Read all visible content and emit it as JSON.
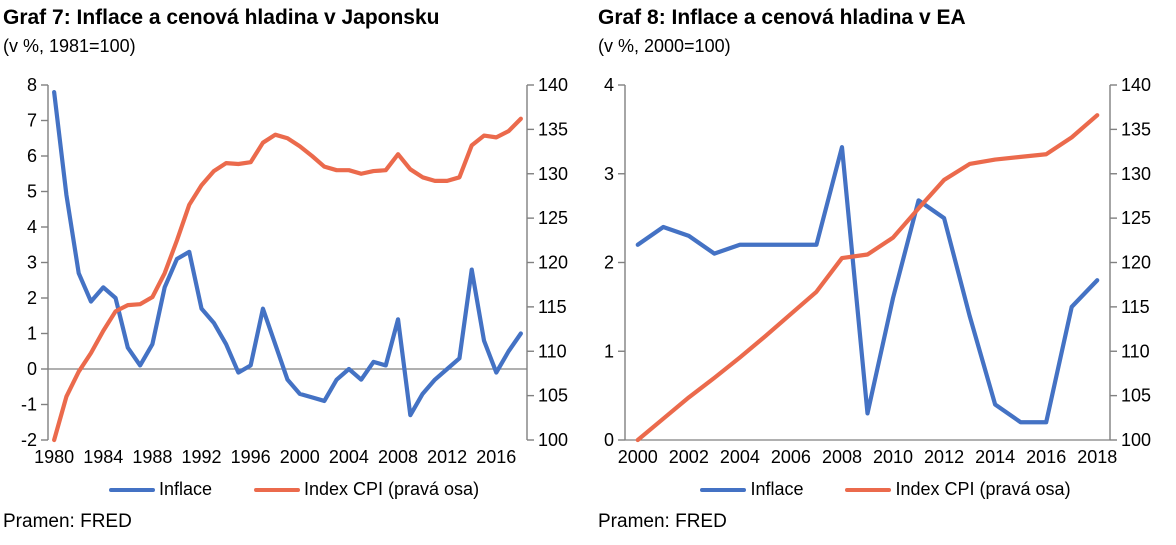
{
  "colors": {
    "inflation_line": "#4472C4",
    "cpi_line": "#EB6A4C",
    "axis": "#808080",
    "text": "#000000"
  },
  "chart_data": [
    {
      "type": "line",
      "title": "Graf 7: Inflace a cenová hladina v Japonsku",
      "subtitle": "(v %, 1981=100)",
      "source": "Pramen: FRED",
      "categories": [
        1980,
        1981,
        1982,
        1983,
        1984,
        1985,
        1986,
        1987,
        1988,
        1989,
        1990,
        1991,
        1992,
        1993,
        1994,
        1995,
        1996,
        1997,
        1998,
        1999,
        2000,
        2001,
        2002,
        2003,
        2004,
        2005,
        2006,
        2007,
        2008,
        2009,
        2010,
        2011,
        2012,
        2013,
        2014,
        2015,
        2016,
        2017,
        2018
      ],
      "x_label_every": 4,
      "left_axis": {
        "min": -2,
        "max": 8,
        "ticks": [
          -2,
          -1,
          0,
          1,
          2,
          3,
          4,
          5,
          6,
          7,
          8
        ]
      },
      "right_axis": {
        "min": 100,
        "max": 140,
        "ticks": [
          100,
          105,
          110,
          115,
          120,
          125,
          130,
          135,
          140
        ]
      },
      "grid": false,
      "legend_position": "bottom",
      "series": [
        {
          "name": "Inflace",
          "axis": "left",
          "color": "#4472C4",
          "values": [
            7.8,
            4.9,
            2.7,
            1.9,
            2.3,
            2.0,
            0.6,
            0.1,
            0.7,
            2.3,
            3.1,
            3.3,
            1.7,
            1.3,
            0.7,
            -0.1,
            0.1,
            1.7,
            0.7,
            -0.3,
            -0.7,
            -0.8,
            -0.9,
            -0.3,
            0.0,
            -0.3,
            0.2,
            0.1,
            1.4,
            -1.3,
            -0.7,
            -0.3,
            0.0,
            0.3,
            2.8,
            0.8,
            -0.1,
            0.5,
            1.0
          ]
        },
        {
          "name": "Index CPI (pravá osa)",
          "axis": "right",
          "color": "#EB6A4C",
          "values": [
            100,
            104.9,
            107.7,
            109.8,
            112.3,
            114.5,
            115.2,
            115.3,
            116.1,
            118.8,
            122.5,
            126.5,
            128.7,
            130.3,
            131.2,
            131.1,
            131.3,
            133.5,
            134.4,
            134.0,
            133.1,
            132.0,
            130.8,
            130.4,
            130.4,
            130.0,
            130.3,
            130.4,
            132.2,
            130.5,
            129.6,
            129.2,
            129.2,
            129.6,
            133.2,
            134.3,
            134.1,
            134.8,
            136.2
          ]
        }
      ]
    },
    {
      "type": "line",
      "title": "Graf 8: Inflace a cenová hladina v EA",
      "subtitle": "(v %, 2000=100)",
      "source": "Pramen: FRED",
      "categories": [
        2000,
        2001,
        2002,
        2003,
        2004,
        2005,
        2006,
        2007,
        2008,
        2009,
        2010,
        2011,
        2012,
        2013,
        2014,
        2015,
        2016,
        2017,
        2018
      ],
      "x_label_every": 2,
      "left_axis": {
        "min": 0,
        "max": 4,
        "ticks": [
          0,
          1,
          2,
          3,
          4
        ]
      },
      "right_axis": {
        "min": 100,
        "max": 140,
        "ticks": [
          100,
          105,
          110,
          115,
          120,
          125,
          130,
          135,
          140
        ]
      },
      "grid": false,
      "legend_position": "bottom",
      "series": [
        {
          "name": "Inflace",
          "axis": "left",
          "color": "#4472C4",
          "values": [
            2.2,
            2.4,
            2.3,
            2.1,
            2.2,
            2.2,
            2.2,
            2.2,
            3.3,
            0.3,
            1.6,
            2.7,
            2.5,
            1.4,
            0.4,
            0.2,
            0.2,
            1.5,
            1.8
          ]
        },
        {
          "name": "Index CPI (pravá osa)",
          "axis": "right",
          "color": "#EB6A4C",
          "values": [
            100,
            102.4,
            104.8,
            107.0,
            109.3,
            111.7,
            114.2,
            116.7,
            120.5,
            120.9,
            122.8,
            126.1,
            129.3,
            131.1,
            131.6,
            131.9,
            132.2,
            134.1,
            136.6
          ]
        }
      ]
    }
  ]
}
